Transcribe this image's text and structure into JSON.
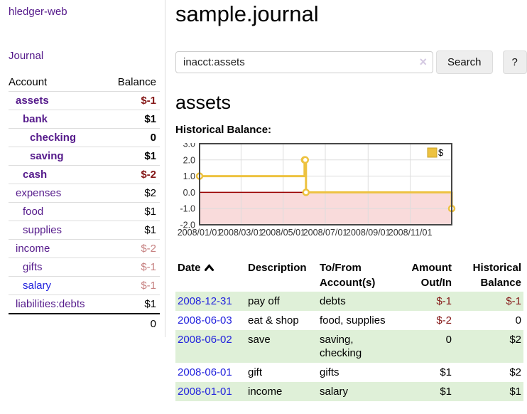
{
  "app": {
    "brand": "hledger-web"
  },
  "colors": {
    "link_visited": "#551a8b",
    "link_blue": "#2222dd",
    "negative": "#841616",
    "negative_muted": "#c68080",
    "row_stripe": "#dff0d8",
    "chart_series": "#EDC240",
    "chart_negative_region": "#f9dbdb",
    "chart_zero_line": "#990000",
    "chart_grid": "#dddddd",
    "chart_border": "#474747"
  },
  "sidebar": {
    "nav_journal": "Journal",
    "accounts_table": {
      "header_account": "Account",
      "header_balance": "Balance",
      "rows": [
        {
          "name": "assets",
          "balance": "$-1",
          "depth": 1,
          "bold": true,
          "balance_class": "neg"
        },
        {
          "name": "bank",
          "balance": "$1",
          "depth": 2,
          "bold": true,
          "balance_class": ""
        },
        {
          "name": "checking",
          "balance": "0",
          "depth": 3,
          "bold": true,
          "balance_class": ""
        },
        {
          "name": "saving",
          "balance": "$1",
          "depth": 3,
          "bold": true,
          "balance_class": ""
        },
        {
          "name": "cash",
          "balance": "$-2",
          "depth": 2,
          "bold": true,
          "balance_class": "neg"
        },
        {
          "name": "expenses",
          "balance": "$2",
          "depth": 1,
          "bold": false,
          "balance_class": ""
        },
        {
          "name": "food",
          "balance": "$1",
          "depth": 2,
          "bold": false,
          "balance_class": ""
        },
        {
          "name": "supplies",
          "balance": "$1",
          "depth": 2,
          "bold": false,
          "balance_class": ""
        },
        {
          "name": "income",
          "balance": "$-2",
          "depth": 1,
          "bold": false,
          "balance_class": "neg-muted"
        },
        {
          "name": "gifts",
          "balance": "$-1",
          "depth": 2,
          "bold": false,
          "balance_class": "neg-muted"
        },
        {
          "name": "salary",
          "balance": "$-1",
          "depth": 2,
          "bold": false,
          "balance_class": "neg-muted",
          "link_class": "unvisited"
        },
        {
          "name": "liabilities:debts",
          "balance": "$1",
          "depth": 1,
          "bold": false,
          "balance_class": ""
        }
      ],
      "total": "0"
    }
  },
  "main": {
    "title": "sample.journal",
    "search": {
      "value": "inacct:assets",
      "clear_icon": "×",
      "button_label": "Search",
      "help_label": "?"
    },
    "account_heading": "assets",
    "chart_label": "Historical Balance:",
    "register": {
      "headers": {
        "date": "Date",
        "sort_icon": "chevron-up",
        "description": "Description",
        "accounts": "To/From Account(s)",
        "amount": "Amount Out/In",
        "balance": "Historical Balance"
      },
      "rows": [
        {
          "date": "2008-12-31",
          "description": "pay off",
          "accounts": "debts",
          "amount": "$-1",
          "amount_class": "neg",
          "balance": "$-1",
          "balance_class": "neg"
        },
        {
          "date": "2008-06-03",
          "description": "eat & shop",
          "accounts": "food, supplies",
          "amount": "$-2",
          "amount_class": "neg",
          "balance": "0",
          "balance_class": ""
        },
        {
          "date": "2008-06-02",
          "description": "save",
          "accounts": "saving, checking",
          "amount": "0",
          "amount_class": "",
          "balance": "$2",
          "balance_class": ""
        },
        {
          "date": "2008-06-01",
          "description": "gift",
          "accounts": "gifts",
          "amount": "$1",
          "amount_class": "",
          "balance": "$2",
          "balance_class": ""
        },
        {
          "date": "2008-01-01",
          "description": "income",
          "accounts": "salary",
          "amount": "$1",
          "amount_class": "",
          "balance": "$1",
          "balance_class": ""
        }
      ]
    }
  },
  "chart_data": {
    "type": "line",
    "step": true,
    "title": "Historical Balance:",
    "series": [
      {
        "name": "$",
        "points": [
          [
            "2008-01-01",
            1
          ],
          [
            "2008-06-01",
            2
          ],
          [
            "2008-06-02",
            2
          ],
          [
            "2008-06-03",
            0
          ],
          [
            "2008-12-31",
            -1
          ]
        ]
      }
    ],
    "xlim": [
      "2008-01-01",
      "2008-12-31"
    ],
    "ylim": [
      -2,
      3
    ],
    "yticks": [
      3,
      2,
      1,
      0,
      -1,
      -2
    ],
    "xticks": [
      {
        "date": "2008-01-01",
        "label": "2008/01/01"
      },
      {
        "date": "2008-03-01",
        "label": "2008/03/01"
      },
      {
        "date": "2008-05-01",
        "label": "2008/05/01"
      },
      {
        "date": "2008-07-01",
        "label": "2008/07/01"
      },
      {
        "date": "2008-09-01",
        "label": "2008/09/01"
      },
      {
        "date": "2008-11-01",
        "label": "2008/11/01"
      }
    ],
    "legend_position": "top-right",
    "grid": true
  }
}
